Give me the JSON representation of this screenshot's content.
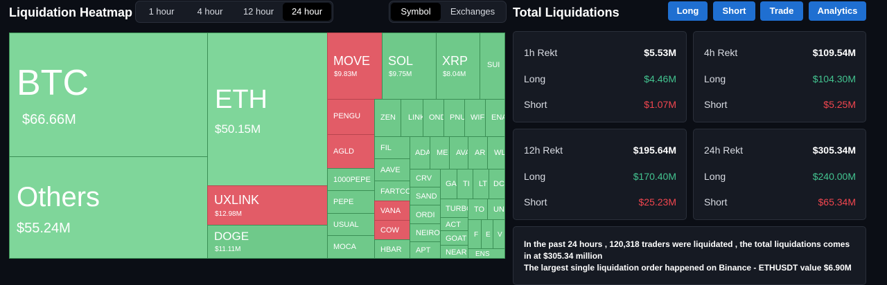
{
  "header": {
    "title": "Liquidation Heatmap",
    "timeframes": [
      "1 hour",
      "4 hour",
      "12 hour",
      "24 hour"
    ],
    "active_timeframe": "24 hour",
    "views": [
      "Symbol",
      "Exchanges"
    ],
    "active_view": "Symbol"
  },
  "colors": {
    "long_green": "#43c490",
    "short_red": "#f2464f",
    "tile_green": "#6fc98a",
    "tile_red": "#e25c67",
    "button_blue": "#1f6fd1"
  },
  "heatmap": {
    "btc": {
      "symbol": "BTC",
      "value": "$66.66M"
    },
    "others": {
      "symbol": "Others",
      "value": "$55.24M"
    },
    "eth": {
      "symbol": "ETH",
      "value": "$50.15M"
    },
    "uxlink": {
      "symbol": "UXLINK",
      "value": "$12.98M"
    },
    "doge": {
      "symbol": "DOGE",
      "value": "$11.11M"
    },
    "move": {
      "symbol": "MOVE",
      "value": "$9.83M"
    },
    "sol": {
      "symbol": "SOL",
      "value": "$9.75M"
    },
    "xrp": {
      "symbol": "XRP",
      "value": "$8.04M"
    },
    "sui": {
      "symbol": "SUI"
    },
    "pengu": {
      "symbol": "PENGU"
    },
    "agld": {
      "symbol": "AGLD"
    },
    "pepe1000": {
      "symbol": "1000PEPE"
    },
    "pepe": {
      "symbol": "PEPE"
    },
    "usual": {
      "symbol": "USUAL"
    },
    "moca": {
      "symbol": "MOCA"
    },
    "zen": {
      "symbol": "ZEN"
    },
    "link": {
      "symbol": "LINK"
    },
    "ond": {
      "symbol": "OND"
    },
    "pnu": {
      "symbol": "PNU"
    },
    "wif": {
      "symbol": "WIF"
    },
    "ena": {
      "symbol": "ENA"
    },
    "fil": {
      "symbol": "FIL"
    },
    "aave": {
      "symbol": "AAVE"
    },
    "fartco": {
      "symbol": "FARTCO"
    },
    "vana": {
      "symbol": "VANA"
    },
    "cow": {
      "symbol": "COW"
    },
    "hbar": {
      "symbol": "HBAR"
    },
    "ada": {
      "symbol": "ADA"
    },
    "me": {
      "symbol": "ME"
    },
    "ava": {
      "symbol": "AVA"
    },
    "ar": {
      "symbol": "AR"
    },
    "wl": {
      "symbol": "WL"
    },
    "crv": {
      "symbol": "CRV"
    },
    "sand": {
      "symbol": "SAND"
    },
    "ordi": {
      "symbol": "ORDI"
    },
    "neiro": {
      "symbol": "NEIRO"
    },
    "apt": {
      "symbol": "APT"
    },
    "ga": {
      "symbol": "GA"
    },
    "ti": {
      "symbol": "TI"
    },
    "lt": {
      "symbol": "LT"
    },
    "do": {
      "symbol": "DC"
    },
    "turbo": {
      "symbol": "TURBO"
    },
    "act": {
      "symbol": "ACT"
    },
    "goat": {
      "symbol": "GOAT"
    },
    "near": {
      "symbol": "NEAR"
    },
    "to": {
      "symbol": "TO"
    },
    "un": {
      "symbol": "UN"
    },
    "f": {
      "symbol": "F"
    },
    "e": {
      "symbol": "E"
    },
    "v": {
      "symbol": "V"
    },
    "ens": {
      "symbol": "ENS"
    }
  },
  "totals": {
    "title": "Total Liquidations",
    "buttons": {
      "long": "Long",
      "short": "Short",
      "trade": "Trade",
      "analytics": "Analytics"
    },
    "row_labels": {
      "long": "Long",
      "short": "Short"
    },
    "cards": {
      "h1": {
        "label": "1h Rekt",
        "total": "$5.53M",
        "long": "$4.46M",
        "short": "$1.07M"
      },
      "h4": {
        "label": "4h Rekt",
        "total": "$109.54M",
        "long": "$104.30M",
        "short": "$5.25M"
      },
      "h12": {
        "label": "12h Rekt",
        "total": "$195.64M",
        "long": "$170.40M",
        "short": "$25.23M"
      },
      "h24": {
        "label": "24h Rekt",
        "total": "$305.34M",
        "long": "$240.00M",
        "short": "$65.34M"
      }
    }
  },
  "summary": {
    "line1": "In the past 24 hours , 120,318 traders were liquidated , the total liquidations comes in at $305.34 million",
    "line2": "The largest single liquidation order happened on Binance - ETHUSDT value $6.90M"
  }
}
